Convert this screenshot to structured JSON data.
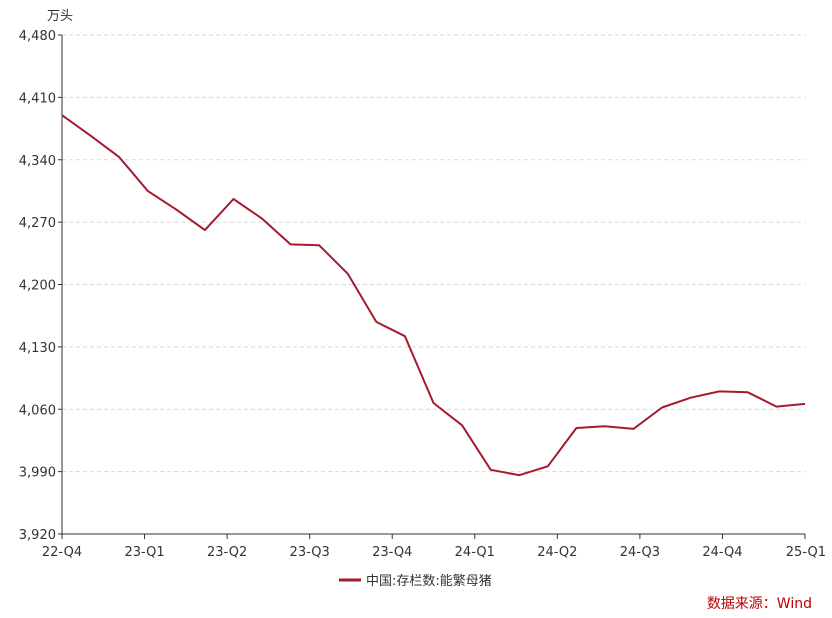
{
  "chart_data": {
    "type": "line",
    "ylabel": "万头",
    "ylim": [
      3920,
      4480
    ],
    "yticks": [
      "4,480",
      "4,410",
      "4,340",
      "4,270",
      "4,200",
      "4,130",
      "4,060",
      "3,990",
      "3,920"
    ],
    "ytick_values": [
      4480,
      4410,
      4340,
      4270,
      4200,
      4130,
      4060,
      3990,
      3920
    ],
    "xtick_labels": [
      "22-Q4",
      "23-Q1",
      "23-Q2",
      "23-Q3",
      "23-Q4",
      "24-Q1",
      "24-Q2",
      "24-Q3",
      "24-Q4",
      "25-Q1"
    ],
    "grid": true,
    "legend_position": "bottom-center",
    "series": [
      {
        "name": "中国:存栏数:能繁母猪",
        "color": "#a31b2e",
        "months": [
          "2022-12",
          "2023-01",
          "2023-02",
          "2023-03",
          "2023-04",
          "2023-05",
          "2023-06",
          "2023-07",
          "2023-08",
          "2023-09",
          "2023-10",
          "2023-11",
          "2023-12",
          "2024-01",
          "2024-02",
          "2024-03",
          "2024-04",
          "2024-05",
          "2024-06",
          "2024-07",
          "2024-08",
          "2024-09",
          "2024-10",
          "2024-11",
          "2024-12",
          "2025-01",
          "2025-02"
        ],
        "values": [
          4390,
          4367,
          4343,
          4305,
          4284,
          4261,
          4296,
          4274,
          4245,
          4244,
          4212,
          4158,
          4142,
          4067,
          4042,
          3992,
          3986,
          3996,
          4039,
          4041,
          4038,
          4062,
          4073,
          4080,
          4079,
          4063,
          4066
        ]
      }
    ]
  },
  "source": "数据来源：Wind"
}
